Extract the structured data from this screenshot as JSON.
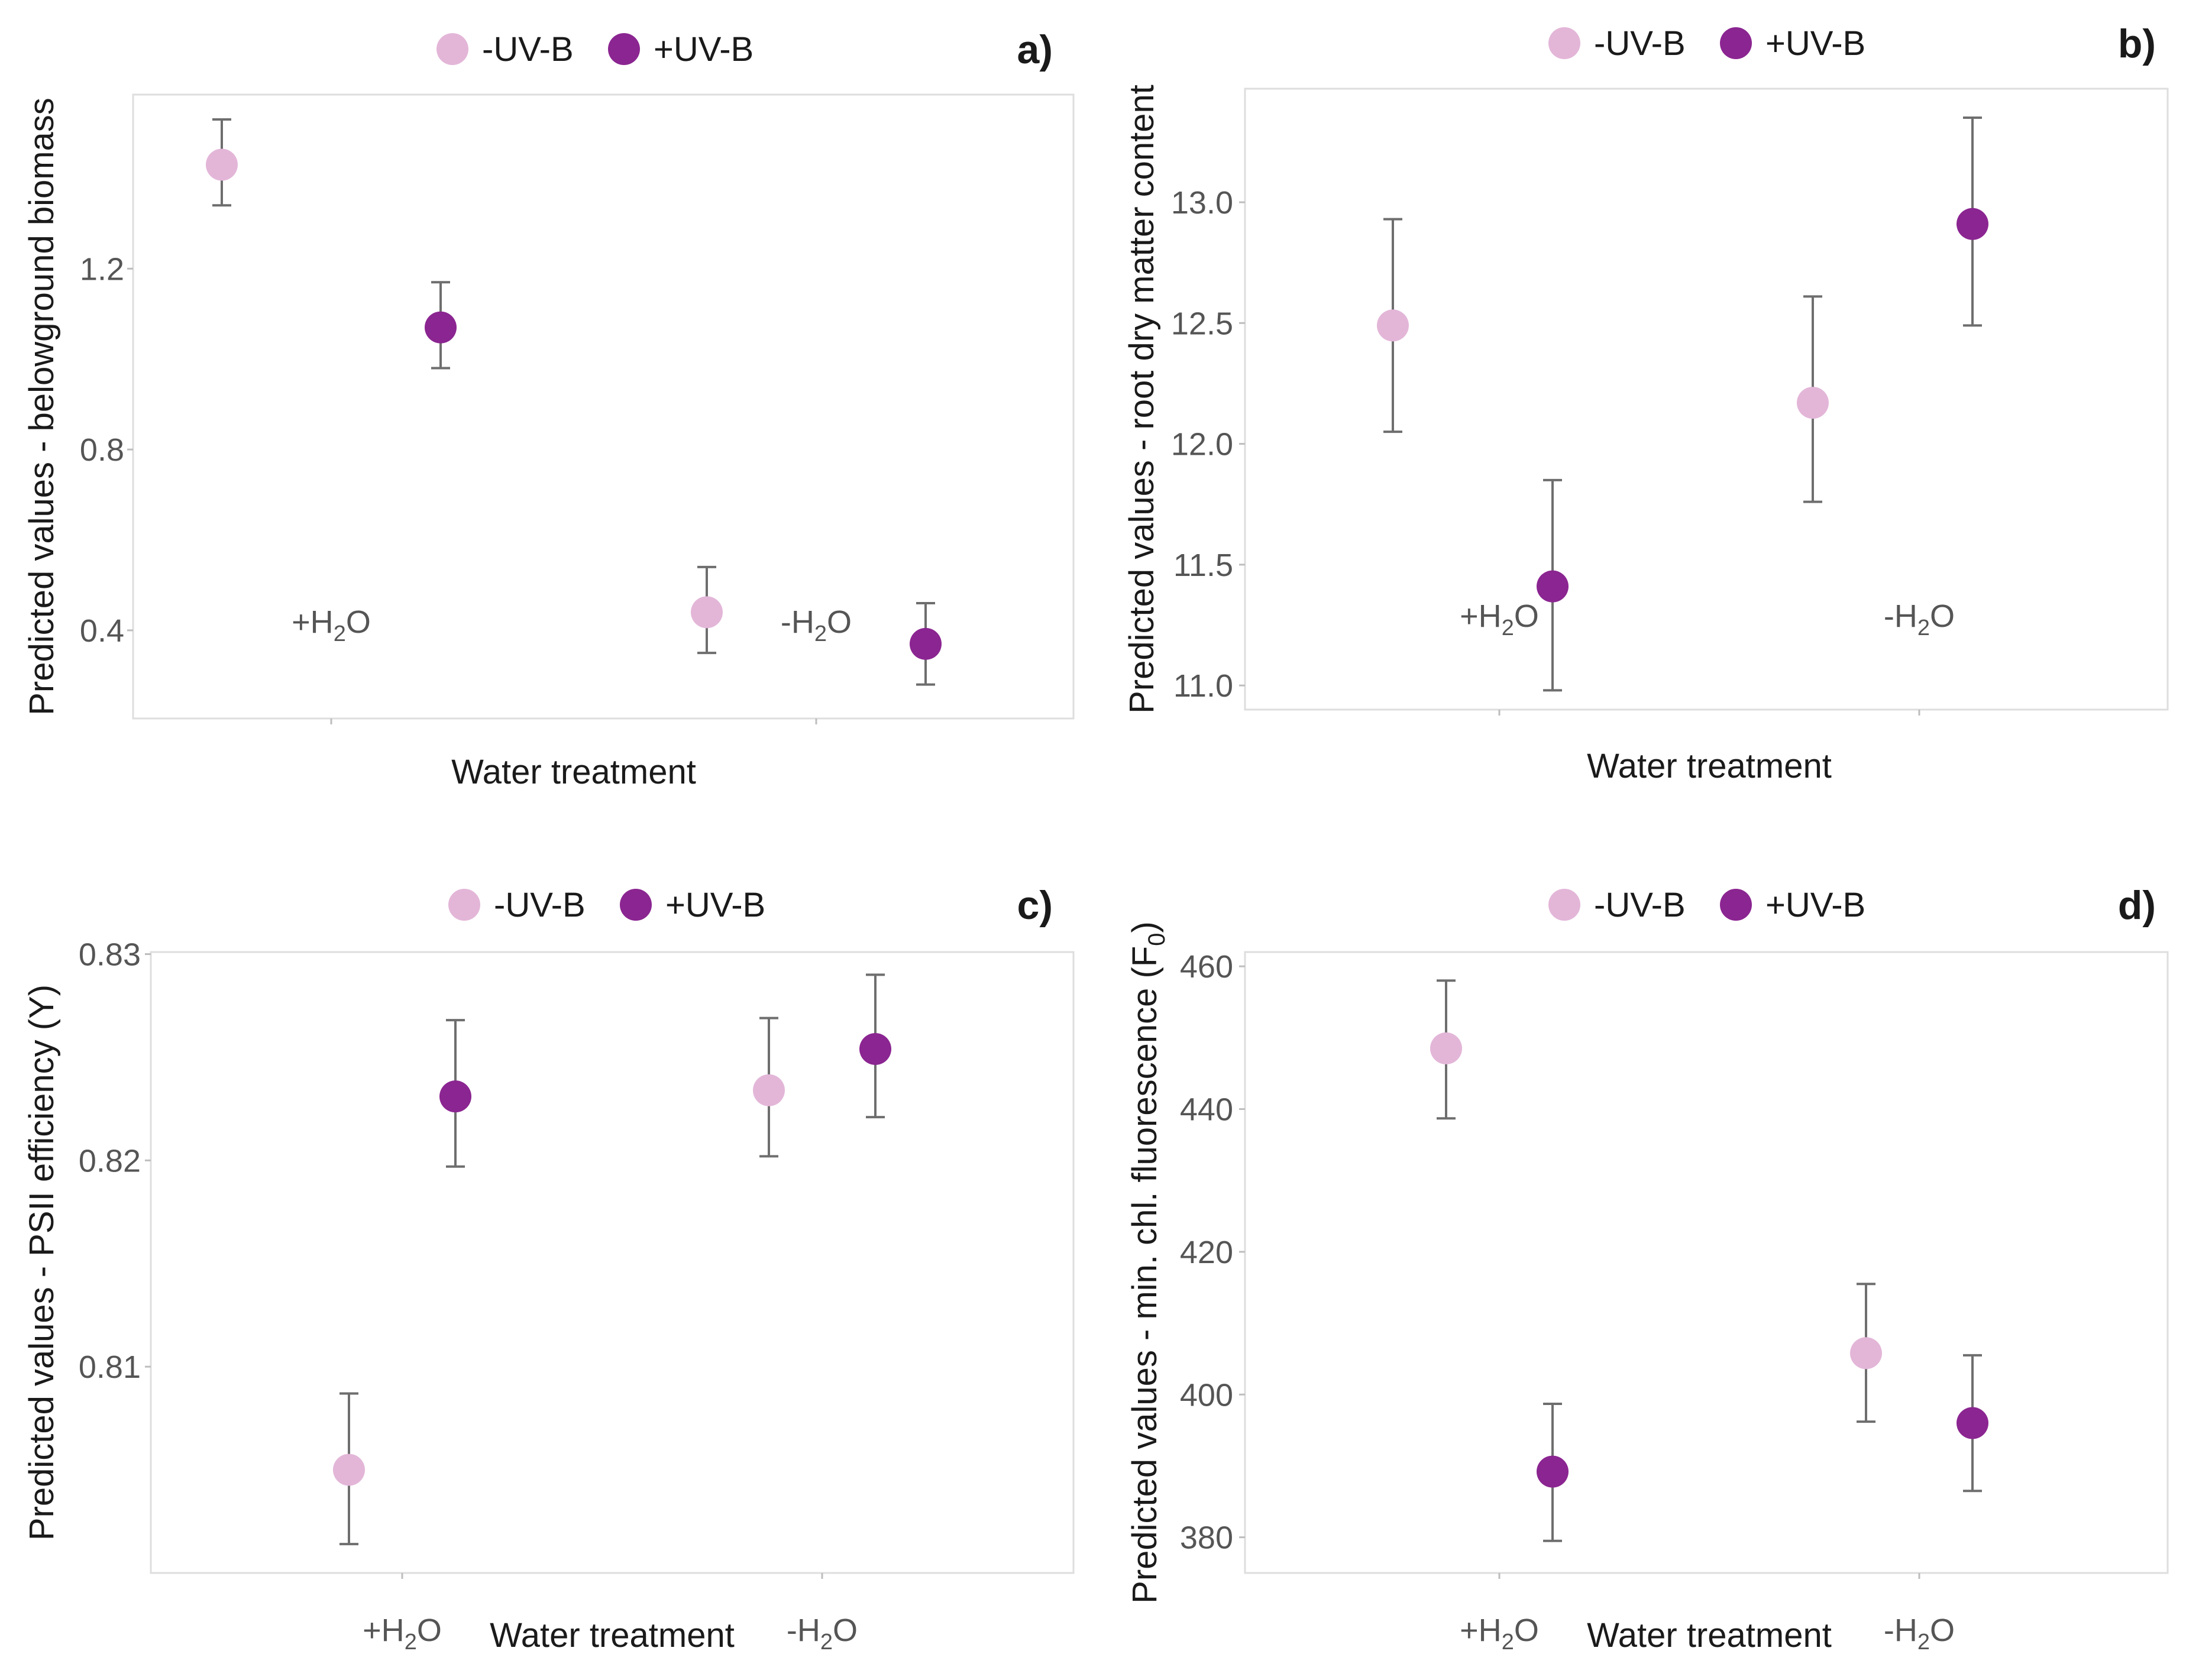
{
  "colors": {
    "minus_uvb": "#e3b6d8",
    "plus_uvb": "#8b2591"
  },
  "chart_data": [
    {
      "panel": "a)",
      "type": "scatter",
      "title": "",
      "legend": [
        "-UV-B",
        "+UV-B"
      ],
      "xlabel": "Water treatment",
      "ylabel": "Predicted values - belowground biomass",
      "categories": [
        {
          "text": "+H",
          "sub": "2",
          "rest": "O"
        },
        {
          "text": "-H",
          "sub": "2",
          "rest": "O"
        }
      ],
      "ylim": [
        0.205,
        1.585
      ],
      "yticks": [
        0.4,
        0.8,
        1.2
      ],
      "ytick_labels": [
        "0.4",
        "0.8",
        "1.2"
      ],
      "series": [
        {
          "name": "-UV-B",
          "values": [
            1.43,
            0.44
          ],
          "lower": [
            1.34,
            0.35
          ],
          "upper": [
            1.53,
            0.54
          ]
        },
        {
          "name": "+UV-B",
          "values": [
            1.07,
            0.37
          ],
          "lower": [
            0.98,
            0.28
          ],
          "upper": [
            1.17,
            0.46
          ]
        }
      ]
    },
    {
      "panel": "b)",
      "type": "scatter",
      "title": "",
      "legend": [
        "-UV-B",
        "+UV-B"
      ],
      "xlabel": "Water treatment",
      "ylabel": "Predicted values - root dry matter content",
      "categories": [
        {
          "text": "+H",
          "sub": "2",
          "rest": "O"
        },
        {
          "text": "-H",
          "sub": "2",
          "rest": "O"
        }
      ],
      "ylim": [
        10.9,
        13.47
      ],
      "yticks": [
        11.0,
        11.5,
        12.0,
        12.5,
        13.0
      ],
      "ytick_labels": [
        "11.0",
        "11.5",
        "12.0",
        "12.5",
        "13.0"
      ],
      "series": [
        {
          "name": "-UV-B",
          "values": [
            12.49,
            12.17
          ],
          "lower": [
            12.05,
            11.76
          ],
          "upper": [
            12.93,
            12.61
          ]
        },
        {
          "name": "+UV-B",
          "values": [
            11.41,
            12.91
          ],
          "lower": [
            10.98,
            12.49
          ],
          "upper": [
            11.85,
            13.35
          ]
        }
      ]
    },
    {
      "panel": "c)",
      "type": "scatter",
      "title": "",
      "legend": [
        "-UV-B",
        "+UV-B"
      ],
      "xlabel": "Water treatment",
      "ylabel": "Predicted values - PSII efficiency (Y)",
      "categories": [
        {
          "text": "+H",
          "sub": "2",
          "rest": "O"
        },
        {
          "text": "-H",
          "sub": "2",
          "rest": "O"
        }
      ],
      "ylim": [
        0.8,
        0.8301
      ],
      "yticks": [
        0.81,
        0.82,
        0.83
      ],
      "ytick_labels": [
        "0.81",
        "0.82",
        "0.83"
      ],
      "series": [
        {
          "name": "-UV-B",
          "values": [
            0.805,
            0.8234
          ],
          "lower": [
            0.8014,
            0.8202
          ],
          "upper": [
            0.8087,
            0.8269
          ]
        },
        {
          "name": "+UV-B",
          "values": [
            0.8231,
            0.8254
          ],
          "lower": [
            0.8197,
            0.8221
          ],
          "upper": [
            0.8268,
            0.829
          ]
        }
      ]
    },
    {
      "panel": "d)",
      "type": "scatter",
      "title": "",
      "legend": [
        "-UV-B",
        "+UV-B"
      ],
      "xlabel": "Water treatment",
      "ylabel": "Predicted values - min. chl. fluorescence (F",
      "ylabel_sub": "0",
      "ylabel_end": ")",
      "categories": [
        {
          "text": "+H",
          "sub": "2",
          "rest": "O"
        },
        {
          "text": "-H",
          "sub": "2",
          "rest": "O"
        }
      ],
      "ylim": [
        375,
        462
      ],
      "yticks": [
        380,
        400,
        420,
        440,
        460
      ],
      "ytick_labels": [
        "380",
        "400",
        "420",
        "440",
        "460"
      ],
      "series": [
        {
          "name": "-UV-B",
          "values": [
            448.5,
            405.8
          ],
          "lower": [
            438.7,
            396.2
          ],
          "upper": [
            458.0,
            415.5
          ]
        },
        {
          "name": "+UV-B",
          "values": [
            389.2,
            396.0
          ],
          "lower": [
            379.5,
            386.5
          ],
          "upper": [
            398.7,
            405.5
          ]
        }
      ]
    }
  ]
}
